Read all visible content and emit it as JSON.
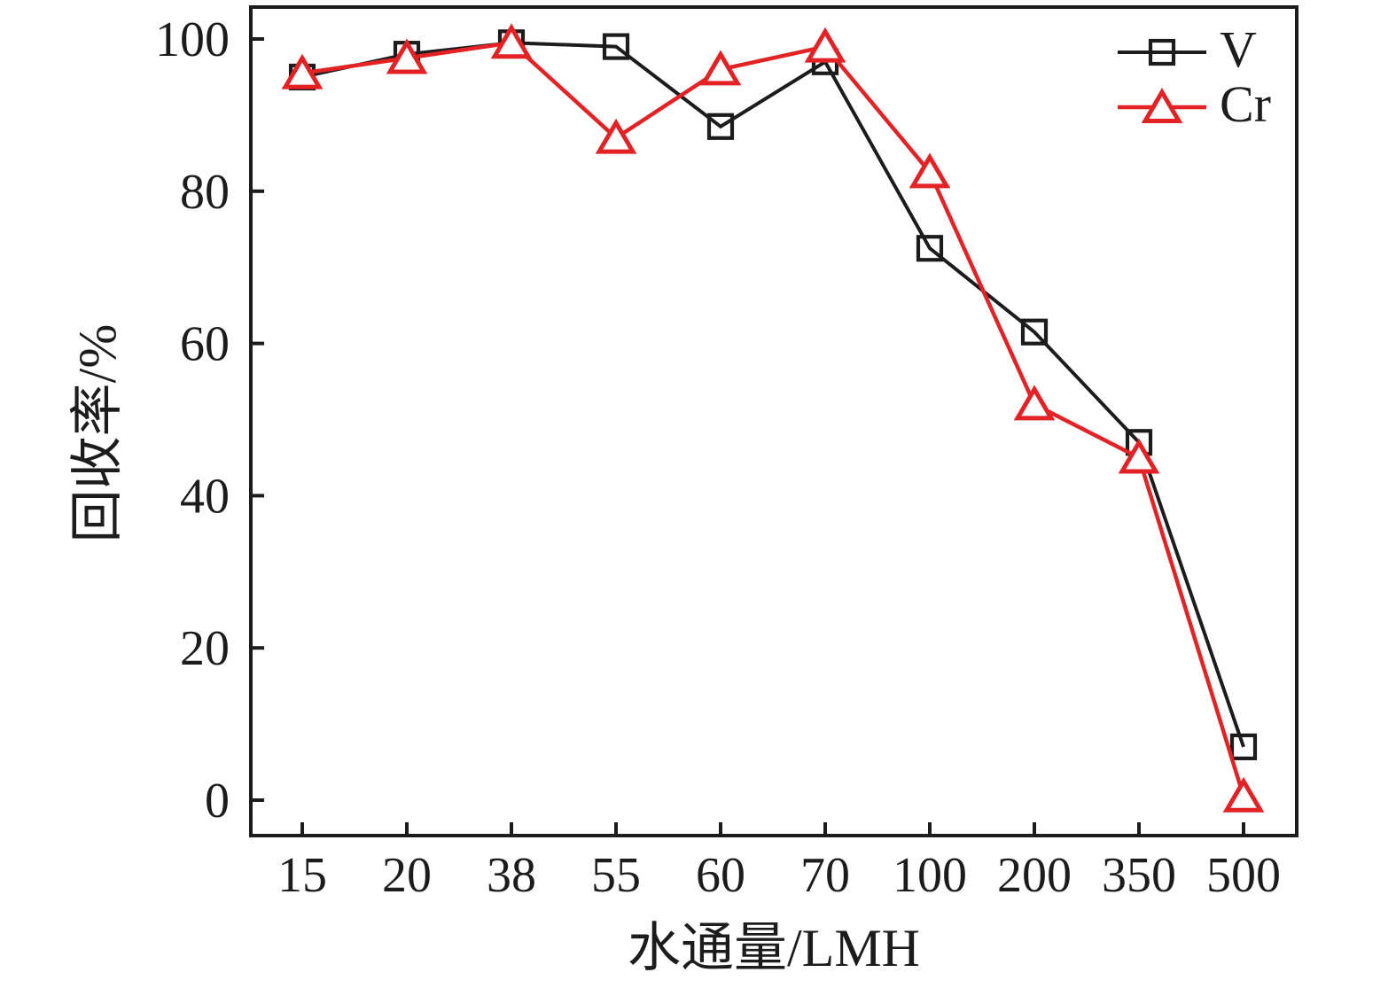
{
  "chart_data": {
    "type": "line",
    "title": "",
    "xlabel": "水通量/LMH",
    "ylabel": "回收率/%",
    "categories": [
      "15",
      "20",
      "38",
      "55",
      "60",
      "70",
      "100",
      "200",
      "350",
      "500"
    ],
    "yticks": [
      "0",
      "20",
      "40",
      "60",
      "80",
      "100"
    ],
    "ylim": [
      -5,
      104
    ],
    "grid": false,
    "legend_position": "top-right-inside",
    "background_color": "#ffffff",
    "axis_color": "#1c1c1c",
    "series": [
      {
        "name": "V",
        "marker": "square",
        "color": "#1c1c1c",
        "values": [
          95,
          98,
          99.5,
          99,
          88.5,
          97,
          72.5,
          61.5,
          47,
          7
        ]
      },
      {
        "name": "Cr",
        "marker": "triangle",
        "color": "#e32225",
        "values": [
          95.5,
          97.5,
          99.5,
          87,
          96,
          99,
          82.5,
          52,
          45,
          0.5
        ]
      }
    ]
  }
}
